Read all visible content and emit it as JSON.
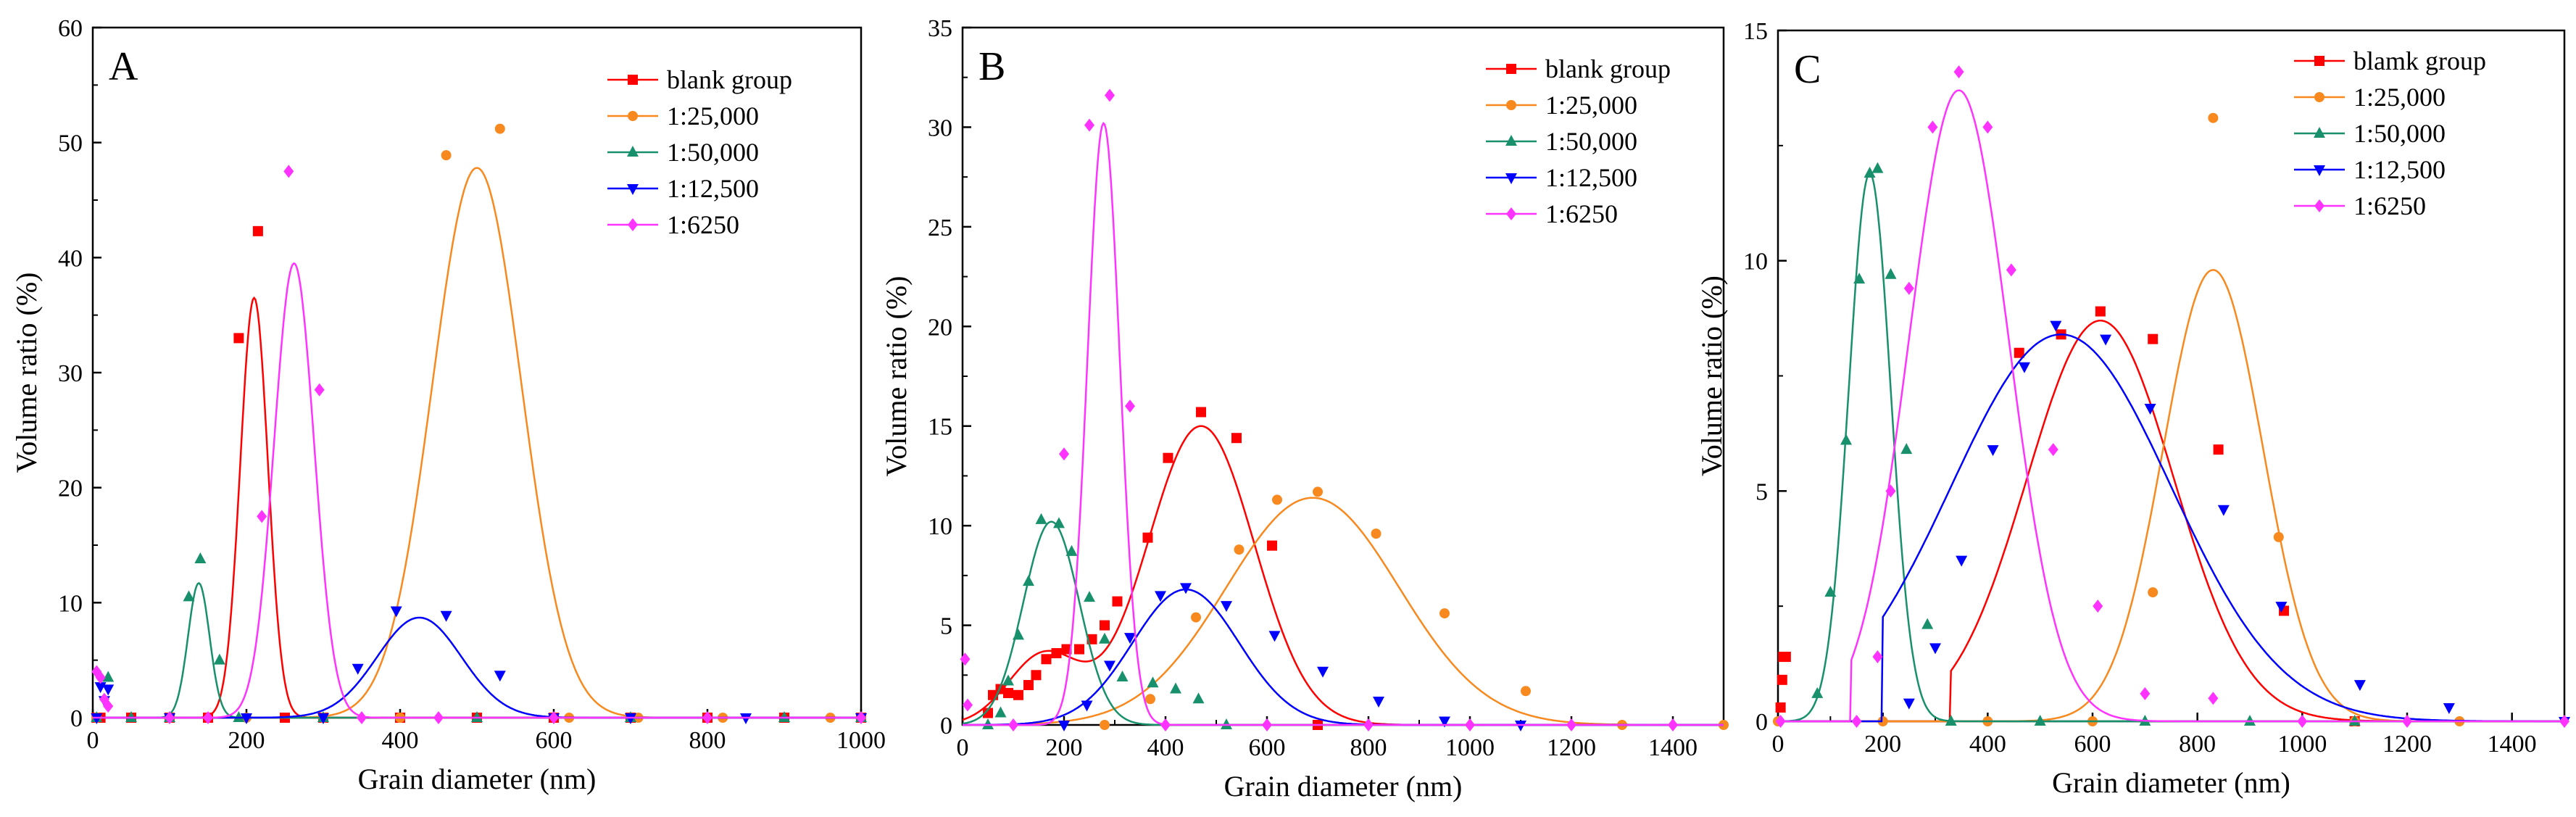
{
  "figure": {
    "panels": [
      "A",
      "B",
      "C"
    ]
  },
  "chart_data": [
    {
      "type": "line",
      "panel_label": "A",
      "xlabel": "Grain diameter (nm)",
      "ylabel": "Volume ratio (%)",
      "xlim": [
        0,
        1000
      ],
      "ylim": [
        0,
        60
      ],
      "xticks": [
        0,
        200,
        400,
        600,
        800,
        1000
      ],
      "yticks": [
        0,
        10,
        20,
        30,
        40,
        50,
        60
      ],
      "legend": [
        "blank group",
        "1:25,000",
        "1:50,000",
        "1:12,500",
        "1:6250"
      ],
      "series": [
        {
          "name": "blank group",
          "color": "#ff0000",
          "marker": "square",
          "fit": {
            "amp": 36.5,
            "mu": 210,
            "sigma": 18
          },
          "points": [
            [
              5,
              0
            ],
            [
              10,
              0
            ],
            [
              50,
              0
            ],
            [
              100,
              0
            ],
            [
              150,
              0
            ],
            [
              190,
              33
            ],
            [
              215,
              42.3
            ],
            [
              250,
              0
            ],
            [
              300,
              0
            ],
            [
              400,
              0
            ],
            [
              500,
              0
            ],
            [
              600,
              0
            ],
            [
              700,
              0
            ],
            [
              800,
              0
            ],
            [
              900,
              0
            ],
            [
              1000,
              0
            ]
          ]
        },
        {
          "name": "1:25,000",
          "color": "#f7891f",
          "marker": "circle",
          "fit": {
            "amp": 47.8,
            "mu": 500,
            "sigma": 58
          },
          "points": [
            [
              5,
              0
            ],
            [
              100,
              0
            ],
            [
              200,
              0
            ],
            [
              300,
              0
            ],
            [
              400,
              0
            ],
            [
              460,
              48.9
            ],
            [
              530,
              51.2
            ],
            [
              620,
              0
            ],
            [
              710,
              0
            ],
            [
              820,
              0
            ],
            [
              960,
              0
            ],
            [
              1000,
              0
            ]
          ]
        },
        {
          "name": "1:50,000",
          "color": "#18906b",
          "marker": "triangle-up",
          "fit": {
            "amp": 11.7,
            "mu": 138,
            "sigma": 14
          },
          "points": [
            [
              5,
              0
            ],
            [
              20,
              3.5
            ],
            [
              50,
              0
            ],
            [
              100,
              0
            ],
            [
              125,
              10.5
            ],
            [
              140,
              13.8
            ],
            [
              165,
              5
            ],
            [
              190,
              0
            ],
            [
              300,
              0
            ],
            [
              500,
              0
            ],
            [
              700,
              0
            ],
            [
              900,
              0
            ],
            [
              1000,
              0
            ]
          ]
        },
        {
          "name": "1:12,500",
          "color": "#0000ff",
          "marker": "triangle-down",
          "fit": {
            "amp": 8.7,
            "mu": 425,
            "sigma": 55
          },
          "points": [
            [
              5,
              0
            ],
            [
              10,
              2.7
            ],
            [
              15,
              1.5
            ],
            [
              20,
              2.5
            ],
            [
              100,
              0
            ],
            [
              200,
              0
            ],
            [
              300,
              0
            ],
            [
              345,
              4.3
            ],
            [
              395,
              9.3
            ],
            [
              460,
              8.9
            ],
            [
              530,
              3.7
            ],
            [
              600,
              0
            ],
            [
              700,
              0
            ],
            [
              850,
              0
            ],
            [
              1000,
              0
            ]
          ]
        },
        {
          "name": "1:6250",
          "color": "#ff33ff",
          "marker": "diamond",
          "fit": {
            "amp": 39.5,
            "mu": 262,
            "sigma": 26
          },
          "points": [
            [
              5,
              4
            ],
            [
              10,
              3.5
            ],
            [
              15,
              1.6
            ],
            [
              20,
              1
            ],
            [
              100,
              0
            ],
            [
              150,
              0
            ],
            [
              220,
              17.5
            ],
            [
              255,
              47.5
            ],
            [
              295,
              28.5
            ],
            [
              350,
              0
            ],
            [
              450,
              0
            ],
            [
              600,
              0
            ],
            [
              800,
              0
            ],
            [
              1000,
              0
            ]
          ]
        }
      ]
    },
    {
      "type": "line",
      "panel_label": "B",
      "xlabel": "Grain diameter (nm)",
      "ylabel": "Volume ratio (%)",
      "xlim": [
        0,
        1500
      ],
      "ylim": [
        0,
        35
      ],
      "xticks": [
        0,
        200,
        400,
        600,
        800,
        1000,
        1200,
        1400
      ],
      "yticks": [
        0,
        5,
        10,
        15,
        20,
        25,
        30,
        35
      ],
      "legend": [
        "blank group",
        "1:25,000",
        "1:50,000",
        "1:12,500",
        "1:6250"
      ],
      "series": [
        {
          "name": "blank group",
          "color": "#ff0000",
          "marker": "square",
          "fit": {
            "amp": 15,
            "mu": 470,
            "sigma": 105,
            "amp2": 3.5,
            "mu2": 160,
            "sigma2": 70
          },
          "points": [
            [
              50,
              0.6
            ],
            [
              60,
              1.5
            ],
            [
              75,
              1.8
            ],
            [
              90,
              1.6
            ],
            [
              110,
              1.5
            ],
            [
              130,
              2
            ],
            [
              145,
              2.5
            ],
            [
              165,
              3.3
            ],
            [
              185,
              3.6
            ],
            [
              205,
              3.8
            ],
            [
              230,
              3.8
            ],
            [
              255,
              4.3
            ],
            [
              280,
              5
            ],
            [
              305,
              6.2
            ],
            [
              365,
              9.4
            ],
            [
              405,
              13.4
            ],
            [
              470,
              15.7
            ],
            [
              540,
              14.4
            ],
            [
              610,
              9
            ],
            [
              700,
              0
            ]
          ]
        },
        {
          "name": "1:25,000",
          "color": "#f7891f",
          "marker": "circle",
          "fit": {
            "amp": 11.4,
            "mu": 690,
            "sigma": 170
          },
          "points": [
            [
              280,
              0
            ],
            [
              370,
              1.3
            ],
            [
              460,
              5.4
            ],
            [
              545,
              8.8
            ],
            [
              620,
              11.3
            ],
            [
              700,
              11.7
            ],
            [
              815,
              9.6
            ],
            [
              950,
              5.6
            ],
            [
              1110,
              1.7
            ],
            [
              1300,
              0
            ],
            [
              1500,
              0
            ]
          ]
        },
        {
          "name": "1:50,000",
          "color": "#18906b",
          "marker": "triangle-up",
          "fit": {
            "amp": 10.2,
            "mu": 175,
            "sigma": 55
          },
          "points": [
            [
              50,
              0
            ],
            [
              75,
              0.6
            ],
            [
              90,
              2.2
            ],
            [
              110,
              4.5
            ],
            [
              130,
              7.2
            ],
            [
              155,
              10.3
            ],
            [
              190,
              10.1
            ],
            [
              215,
              8.7
            ],
            [
              250,
              6.4
            ],
            [
              280,
              4.3
            ],
            [
              315,
              2.4
            ],
            [
              375,
              2.1
            ],
            [
              420,
              1.8
            ],
            [
              465,
              1.3
            ],
            [
              520,
              0
            ]
          ]
        },
        {
          "name": "1:12,500",
          "color": "#0000ff",
          "marker": "triangle-down",
          "fit": {
            "amp": 6.8,
            "mu": 440,
            "sigma": 105
          },
          "points": [
            [
              200,
              0
            ],
            [
              245,
              1
            ],
            [
              290,
              3
            ],
            [
              330,
              4.4
            ],
            [
              390,
              6.5
            ],
            [
              440,
              6.9
            ],
            [
              520,
              6
            ],
            [
              615,
              4.5
            ],
            [
              710,
              2.7
            ],
            [
              820,
              1.2
            ],
            [
              950,
              0.2
            ],
            [
              1100,
              0
            ]
          ]
        },
        {
          "name": "1:6250",
          "color": "#ff33ff",
          "marker": "diamond",
          "fit": {
            "amp": 30.2,
            "mu": 278,
            "sigma": 32
          },
          "points": [
            [
              5,
              3.3
            ],
            [
              10,
              1
            ],
            [
              100,
              0
            ],
            [
              200,
              13.6
            ],
            [
              250,
              30.1
            ],
            [
              290,
              31.6
            ],
            [
              330,
              16
            ],
            [
              400,
              0
            ],
            [
              600,
              0
            ],
            [
              800,
              0
            ],
            [
              1000,
              0
            ],
            [
              1200,
              0
            ],
            [
              1400,
              0
            ]
          ]
        }
      ]
    },
    {
      "type": "line",
      "panel_label": "C",
      "xlabel": "Grain diameter (nm)",
      "ylabel": "Volume ratio (%)",
      "xlim": [
        0,
        1500
      ],
      "ylim": [
        0,
        15
      ],
      "xticks": [
        0,
        200,
        400,
        600,
        800,
        1000,
        1200,
        1400
      ],
      "yticks": [
        0,
        5,
        10,
        15
      ],
      "legend": [
        "blamk group",
        "1:25,000",
        "1:50,000",
        "1:12,500",
        "1:6250"
      ],
      "series": [
        {
          "name": "blamk group",
          "color": "#ff0000",
          "marker": "square",
          "fit": {
            "amp": 8.7,
            "mu": 615,
            "sigma": 140,
            "cut": 330
          },
          "points": [
            [
              5,
              0.3
            ],
            [
              8,
              0.9
            ],
            [
              10,
              1.4
            ],
            [
              15,
              1.4
            ],
            [
              460,
              8
            ],
            [
              540,
              8.4
            ],
            [
              615,
              8.9
            ],
            [
              715,
              8.3
            ],
            [
              840,
              5.9
            ],
            [
              965,
              2.4
            ],
            [
              1100,
              0
            ]
          ]
        },
        {
          "name": "1:25,000",
          "color": "#f7891f",
          "marker": "circle",
          "fit": {
            "amp": 9.8,
            "mu": 830,
            "sigma": 95
          },
          "points": [
            [
              0,
              0
            ],
            [
              200,
              0
            ],
            [
              400,
              0
            ],
            [
              600,
              0
            ],
            [
              715,
              2.8
            ],
            [
              830,
              13.1
            ],
            [
              955,
              4
            ],
            [
              1100,
              0
            ],
            [
              1300,
              0
            ]
          ]
        },
        {
          "name": "1:50,000",
          "color": "#18906b",
          "marker": "triangle-up",
          "fit": {
            "amp": 11.9,
            "mu": 175,
            "sigma": 40
          },
          "points": [
            [
              75,
              0.6
            ],
            [
              100,
              2.8
            ],
            [
              130,
              6.1
            ],
            [
              155,
              9.6
            ],
            [
              175,
              11.9
            ],
            [
              190,
              12
            ],
            [
              215,
              9.7
            ],
            [
              245,
              5.9
            ],
            [
              285,
              2.1
            ],
            [
              330,
              0
            ],
            [
              500,
              0
            ],
            [
              700,
              0
            ],
            [
              900,
              0
            ],
            [
              1100,
              0
            ]
          ]
        },
        {
          "name": "1:12,500",
          "color": "#0000ff",
          "marker": "triangle-down",
          "fit": {
            "amp": 8.4,
            "mu": 540,
            "sigma": 210,
            "cut": 200
          },
          "points": [
            [
              250,
              0.4
            ],
            [
              300,
              1.6
            ],
            [
              350,
              3.5
            ],
            [
              410,
              5.9
            ],
            [
              470,
              7.7
            ],
            [
              530,
              8.6
            ],
            [
              625,
              8.3
            ],
            [
              710,
              6.8
            ],
            [
              850,
              4.6
            ],
            [
              960,
              2.5
            ],
            [
              1110,
              0.8
            ],
            [
              1280,
              0.3
            ],
            [
              1500,
              0
            ]
          ]
        },
        {
          "name": "1:6250",
          "color": "#ff33ff",
          "marker": "diamond",
          "fit": {
            "amp": 13.7,
            "mu": 345,
            "sigma": 95,
            "cut": 140
          },
          "points": [
            [
              5,
              0
            ],
            [
              150,
              0
            ],
            [
              190,
              1.4
            ],
            [
              215,
              5
            ],
            [
              250,
              9.4
            ],
            [
              295,
              12.9
            ],
            [
              345,
              14.1
            ],
            [
              400,
              12.9
            ],
            [
              445,
              9.8
            ],
            [
              525,
              5.9
            ],
            [
              610,
              2.5
            ],
            [
              700,
              0.6
            ],
            [
              830,
              0.5
            ],
            [
              1000,
              0
            ],
            [
              1200,
              0
            ],
            [
              1500,
              0
            ]
          ]
        }
      ]
    }
  ]
}
